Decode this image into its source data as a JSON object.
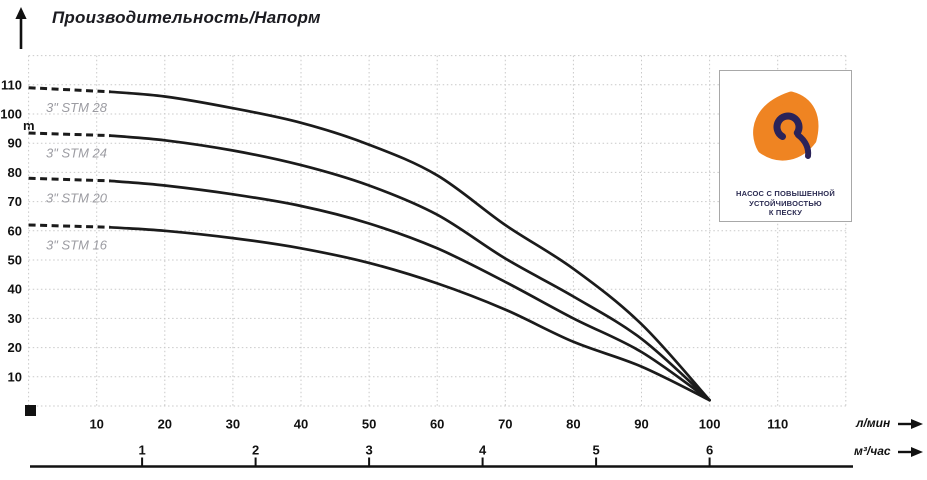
{
  "title": "Производительность/Напорм",
  "y_unit_label": "m",
  "x_unit_primary": "л/мин",
  "x_unit_secondary": "м³/час",
  "badge": {
    "line1": "НАСОС С ПОВЫШЕННОЙ",
    "line2": "УСТОЙЧИВОСТЬЮ",
    "line3": "К ПЕСКУ"
  },
  "colors": {
    "curve": "#1b1b1b",
    "grid": "#c9c9c9",
    "tick_text": "#111111",
    "curve_label": "#9c9ca2",
    "axis_line": "#111111",
    "badge_navy": "#2a2359",
    "badge_orange": "#ef8422"
  },
  "chart_data": {
    "type": "line",
    "title": "Производительность/Напорм",
    "ylabel": "m",
    "xlabel_primary": "л/мин",
    "xlabel_secondary": "м³/час",
    "xlim_lmin": [
      0,
      120
    ],
    "ylim_m": [
      0,
      120
    ],
    "grid": true,
    "grid_step": 10,
    "y_ticks": [
      10,
      20,
      30,
      40,
      50,
      60,
      70,
      80,
      90,
      100,
      110
    ],
    "x_ticks_lmin": [
      10,
      20,
      30,
      40,
      50,
      60,
      70,
      80,
      90,
      100,
      110
    ],
    "x_ticks_m3h": [
      1,
      2,
      3,
      4,
      5,
      6
    ],
    "lmin_per_m3h": 16.6667,
    "x_lmin": [
      0,
      10,
      20,
      30,
      40,
      50,
      60,
      70,
      80,
      90,
      100
    ],
    "dashed_until_lmin": 12,
    "series": [
      {
        "name": "3\" STM 28",
        "head_m": [
          109,
          108,
          106,
          102,
          97,
          89.5,
          79,
          62,
          47,
          28,
          2
        ]
      },
      {
        "name": "3\" STM 24",
        "head_m": [
          93.5,
          93,
          91,
          87.5,
          82.5,
          75.5,
          65.5,
          50.5,
          37.5,
          23,
          2
        ]
      },
      {
        "name": "3\" STM 20",
        "head_m": [
          78,
          77.5,
          75.5,
          72.5,
          68.5,
          62.5,
          54,
          42.5,
          30,
          18.5,
          2
        ]
      },
      {
        "name": "3\" STM 16",
        "head_m": [
          62,
          61.5,
          60,
          57.5,
          54,
          49,
          42,
          33,
          22,
          13.5,
          2
        ]
      }
    ]
  }
}
